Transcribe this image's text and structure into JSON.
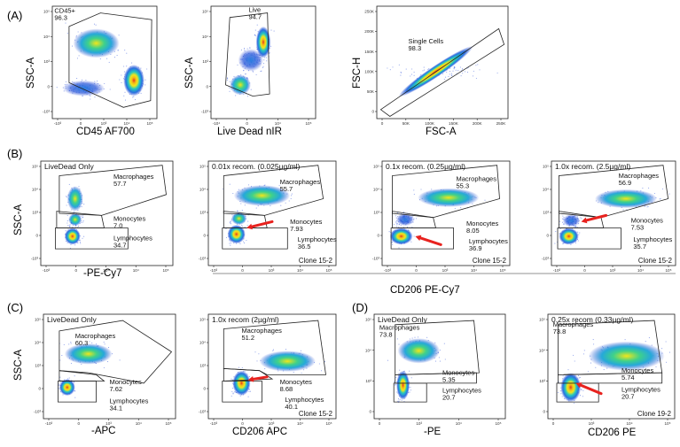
{
  "panel_labels": {
    "A": "(A)",
    "B": "(B)",
    "C": "(C)",
    "D": "(D)"
  },
  "plots": [
    {
      "id": "a1",
      "xlabel": "CD45 AF700",
      "ylabel": "SSC-A",
      "title": "",
      "gates": [
        {
          "name": "CD45+",
          "value": "96.3"
        }
      ],
      "yticks": [
        "10⁵",
        "10⁴",
        "10³",
        "0",
        "-10³"
      ],
      "xticks": [
        "-10³",
        "0",
        "10³",
        "10⁴",
        "10⁵"
      ],
      "clone": ""
    },
    {
      "id": "a2",
      "xlabel": "Live Dead nIR",
      "ylabel": "SSC-A",
      "title": "",
      "gates": [
        {
          "name": "Live",
          "value": "94.7"
        }
      ],
      "yticks": [
        "10⁵",
        "10⁴",
        "10³",
        "0",
        "-10³"
      ],
      "xticks": [
        "-10⁴",
        "0",
        "10⁴",
        "10⁵"
      ],
      "clone": ""
    },
    {
      "id": "a3",
      "xlabel": "FSC-A",
      "ylabel": "FSC-H",
      "title": "",
      "gates": [
        {
          "name": "Single Cells",
          "value": "98.3"
        }
      ],
      "yticks": [
        "250K",
        "200K",
        "150K",
        "100K",
        "50K",
        "0"
      ],
      "xticks": [
        "0",
        "50K",
        "100K",
        "150K",
        "200K",
        "250K"
      ],
      "clone": ""
    },
    {
      "id": "b1",
      "xlabel": "-PE-Cy7",
      "ylabel": "SSC-A",
      "title": "LiveDead Only",
      "gates": [
        {
          "name": "Macrophages",
          "value": "57.7"
        },
        {
          "name": "Monocytes",
          "value": "7.0"
        },
        {
          "name": "Lymphocytes",
          "value": "34.7"
        }
      ],
      "yticks": [
        "10⁵",
        "10⁴",
        "10³",
        "0",
        "-10³"
      ],
      "xticks": [
        "-10³",
        "0",
        "10³",
        "10⁴",
        "10⁵"
      ],
      "clone": ""
    },
    {
      "id": "b2",
      "xlabel": "",
      "ylabel": "",
      "title": "0.01x recom. (0.025µg/ml)",
      "gates": [
        {
          "name": "Macrophages",
          "value": "55.7"
        },
        {
          "name": "Monocytes",
          "value": "7.93"
        },
        {
          "name": "Lymphocytes",
          "value": "36.5"
        }
      ],
      "yticks": [
        "10⁵",
        "10⁴",
        "10³",
        "0",
        "-10³"
      ],
      "xticks": [
        "-10³",
        "0",
        "10³",
        "10⁴",
        "10⁵"
      ],
      "clone": "Clone 15-2"
    },
    {
      "id": "b3",
      "xlabel": "",
      "ylabel": "",
      "title": "0.1x recom. (0.25µg/ml)",
      "gates": [
        {
          "name": "Macrophages",
          "value": "55.3"
        },
        {
          "name": "Monocytes",
          "value": "8.05"
        },
        {
          "name": "Lymphocytes",
          "value": "36.9"
        }
      ],
      "yticks": [
        "10⁵",
        "10⁴",
        "10³",
        "0",
        "-10³"
      ],
      "xticks": [
        "-10³",
        "0",
        "10³",
        "10⁴",
        "10⁵"
      ],
      "clone": "Clone 15-2"
    },
    {
      "id": "b4",
      "xlabel": "",
      "ylabel": "",
      "title": "1.0x recom. (2.5µg/ml)",
      "gates": [
        {
          "name": "Macrophages",
          "value": "56.9"
        },
        {
          "name": "Monocytes",
          "value": "7.53"
        },
        {
          "name": "Lymphocytes",
          "value": "35.7"
        }
      ],
      "yticks": [
        "10⁵",
        "10⁴",
        "10³",
        "0",
        "-10³"
      ],
      "xticks": [
        "-10³",
        "0",
        "10³",
        "10⁴",
        "10⁵"
      ],
      "clone": "Clone 15-2"
    },
    {
      "id": "c1",
      "xlabel": "-APC",
      "ylabel": "SSC-A",
      "title": "LiveDead Only",
      "gates": [
        {
          "name": "Macrophages",
          "value": "60.3"
        },
        {
          "name": "Monocytes",
          "value": "7.62"
        },
        {
          "name": "Lymphocytes",
          "value": "34.1"
        }
      ],
      "yticks": [
        "10⁵",
        "10⁴",
        "10³",
        "0",
        "-10³"
      ],
      "xticks": [
        "-10³",
        "0",
        "10³",
        "10⁴",
        "10⁵"
      ],
      "clone": ""
    },
    {
      "id": "c2",
      "xlabel": "CD206 APC",
      "ylabel": "",
      "title": "1.0x recom (2µg/ml)",
      "gates": [
        {
          "name": "Macrophages",
          "value": "51.2"
        },
        {
          "name": "Monocytes",
          "value": "8.68"
        },
        {
          "name": "Lymphocytes",
          "value": "40.1"
        }
      ],
      "yticks": [
        "10⁵",
        "10⁴",
        "10³",
        "0",
        "-10³"
      ],
      "xticks": [
        "-10³",
        "0",
        "10³",
        "10⁴",
        "10⁵"
      ],
      "clone": "Clone 15-2"
    },
    {
      "id": "d1",
      "xlabel": "-PE",
      "ylabel": "",
      "title": "LiveDead Only",
      "gates": [
        {
          "name": "Macrophages",
          "value": "73.8"
        },
        {
          "name": "Monocytes",
          "value": "5.35"
        },
        {
          "name": "Lymphocytes",
          "value": "20.7"
        }
      ],
      "yticks": [
        "10⁵",
        "10⁴",
        "10³",
        "0"
      ],
      "xticks": [
        "0",
        "10³",
        "10⁴",
        "10⁵"
      ],
      "clone": ""
    },
    {
      "id": "d2",
      "xlabel": "CD206 PE",
      "ylabel": "",
      "title": "0.25x recom (0.33µg/ml)",
      "gates": [
        {
          "name": "Macrophages",
          "value": "73.8"
        },
        {
          "name": "Monocytes",
          "value": "5.74"
        },
        {
          "name": "Lymphocytes",
          "value": "20.7"
        }
      ],
      "yticks": [
        "10⁵",
        "10⁴",
        "10³",
        "0"
      ],
      "xticks": [
        "0",
        "10³",
        "10⁴",
        "10⁵"
      ],
      "clone": "Clone 19-2"
    }
  ],
  "shared_labels": {
    "b_xlabel": "CD206 PE-Cy7"
  },
  "colors": {
    "density_low": "#1f3fd1",
    "density_mid": "#25c7c0",
    "density_high": "#f2e61a",
    "density_peak": "#e8321a",
    "arrow": "#e8221e"
  }
}
